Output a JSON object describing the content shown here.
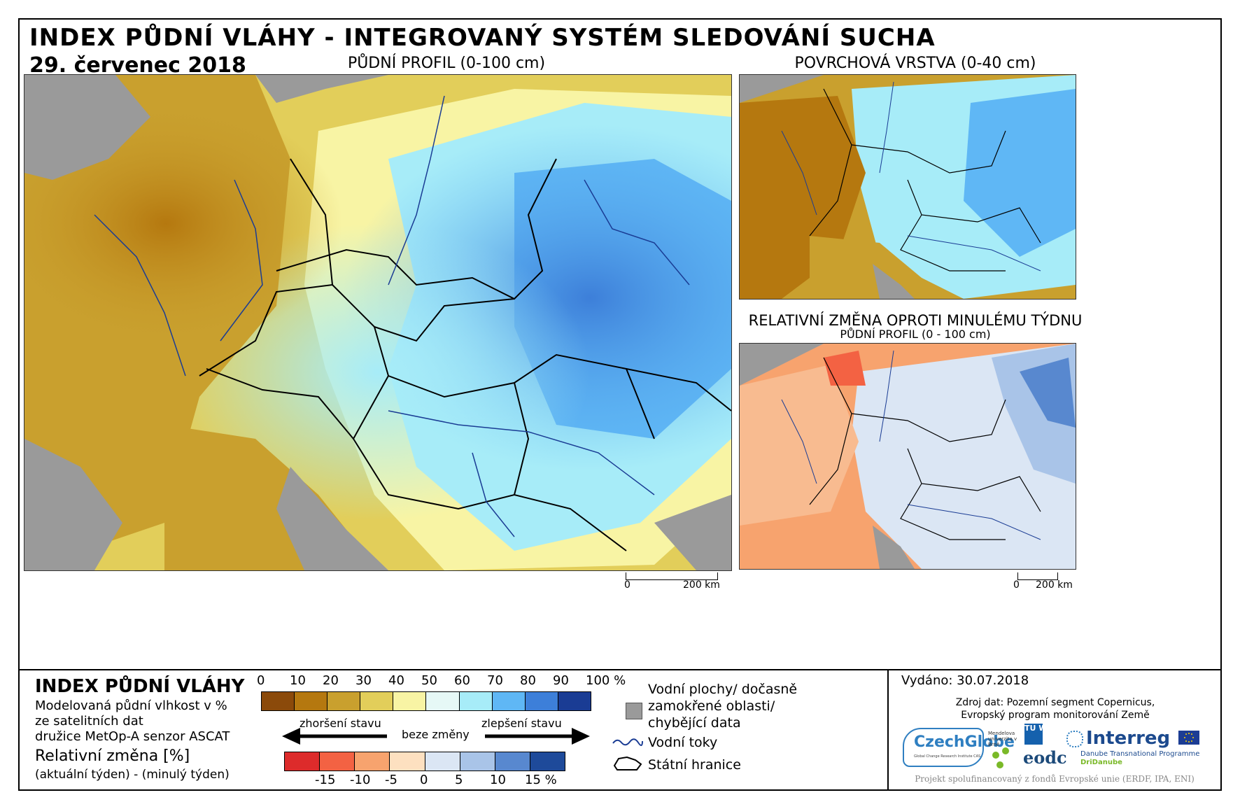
{
  "title": "INDEX PŮDNÍ VLÁHY - INTEGROVANÝ SYSTÉM SLEDOVÁNÍ SUCHA",
  "date": "29. červenec 2018",
  "maps": {
    "main_title": "PŮDNÍ PROFIL (0-100 cm)",
    "top_right_title": "POVRCHOVÁ VRSTVA (0-40 cm)",
    "bottom_right_title": "RELATIVNÍ ZMĚNA OPROTI MINULÉMU TÝDNU",
    "bottom_right_subtitle": "PŮDNÍ PROFIL (0 - 100 cm)",
    "scale_main": {
      "zero": "0",
      "dist": "200 km"
    },
    "scale_right": {
      "zero": "0",
      "dist": "200 km"
    }
  },
  "legend": {
    "heading": "INDEX PŮDNÍ VLÁHY",
    "line1": "Modelovaná půdní vlhkost v %",
    "line2": "ze satelitních dat",
    "line3": "družice MetOp-A senzor ASCAT",
    "rel_heading": "Relativní změna [%]",
    "rel_line": "(aktuální týden) - (minulý týden)",
    "index_ticks": [
      "0",
      "10",
      "20",
      "30",
      "40",
      "50",
      "60",
      "70",
      "80",
      "90",
      "100 %"
    ],
    "index_colors": [
      "#8b4a0a",
      "#b5780f",
      "#c9a02e",
      "#e2ce5a",
      "#f8f4a4",
      "#e6f8f6",
      "#a7ecf8",
      "#5fb7f5",
      "#3d7fd9",
      "#1a3c94"
    ],
    "arrow_left": "zhoršení stavu",
    "arrow_mid": "beze změny",
    "arrow_right": "zlepšení stavu",
    "change_ticks": [
      "-15",
      "-10",
      "-5",
      "0",
      "5",
      "10",
      "15 %"
    ],
    "change_colors": [
      "#dd2b2b",
      "#f36243",
      "#f7a36e",
      "#fde0c0",
      "#dbe6f4",
      "#a9c4e8",
      "#5888cf",
      "#1e4a9a"
    ],
    "water_label_1": "Vodní plochy/ dočasně",
    "water_label_2": "zamokřené oblasti/",
    "water_label_3": "chybějící data",
    "rivers_label": "Vodní toky",
    "borders_label": "Státní hranice"
  },
  "info": {
    "issued": "Vydáno: 30.07.2018",
    "source_1": "Zdroj dat: Pozemní segment Copernicus,",
    "source_2": "Evropský program monitorování Země",
    "logos": {
      "czechglobe": "CzechGlobe",
      "czechglobe_sub": "Global Change Research Institute CAS",
      "mendel": "Mendelova univerzita v Brně",
      "tu": "TU WIEN",
      "eodc": "eodc",
      "interreg": "Interreg",
      "interreg_sub": "Danube Transnational Programme",
      "interreg_sub2": "DriDanube"
    },
    "footer": "Projekt spolufinancovaný z fondů Evropské unie (ERDF, IPA, ENI)"
  }
}
